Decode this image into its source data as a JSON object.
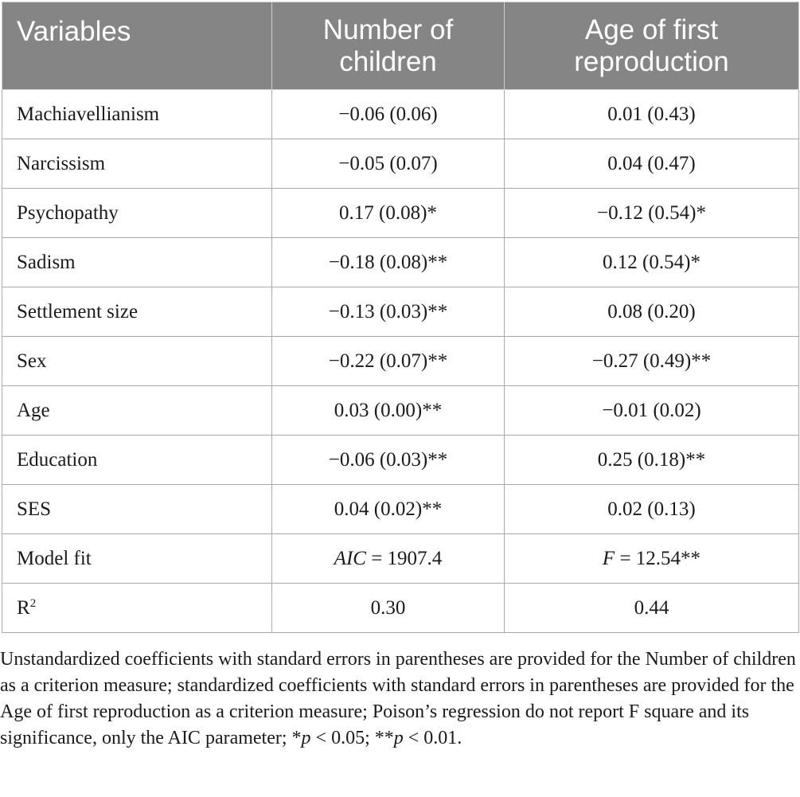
{
  "table": {
    "headers": [
      "Variables",
      "Number of children",
      "Age of first reproduction"
    ],
    "rows": [
      {
        "variable": "Machiavellianism",
        "children": "−0.06 (0.06)",
        "age_first": "0.01 (0.43)"
      },
      {
        "variable": "Narcissism",
        "children": "−0.05 (0.07)",
        "age_first": "0.04 (0.47)"
      },
      {
        "variable": "Psychopathy",
        "children": "0.17 (0.08)*",
        "age_first": "−0.12 (0.54)*"
      },
      {
        "variable": "Sadism",
        "children": "−0.18 (0.08)**",
        "age_first": "0.12 (0.54)*"
      },
      {
        "variable": "Settlement size",
        "children": "−0.13 (0.03)**",
        "age_first": "0.08 (0.20)"
      },
      {
        "variable": "Sex",
        "children": "−0.22 (0.07)**",
        "age_first": "−0.27 (0.49)**"
      },
      {
        "variable": "Age",
        "children": "0.03 (0.00)**",
        "age_first": "−0.01 (0.02)"
      },
      {
        "variable": "Education",
        "children": "−0.06 (0.03)**",
        "age_first": "0.25 (0.18)**"
      },
      {
        "variable": "SES",
        "children": "0.04 (0.02)**",
        "age_first": "0.02 (0.13)"
      }
    ],
    "model_fit": {
      "label": "Model fit",
      "children_stat": "AIC",
      "children_value": " = 1907.4",
      "age_stat": "F",
      "age_value": " = 12.54**"
    },
    "r2": {
      "label_base": "R",
      "label_sup": "2",
      "children": "0.30",
      "age_first": "0.44"
    }
  },
  "footnote": {
    "main": "Unstandardized coefficients with standard errors in parentheses are provided for the Number of children as a criterion measure; standardized coefficients with standard errors in parentheses are provided for the Age of first reproduction as a criterion measure; Poison’s regression do not report F square and its significance, only the AIC parameter; *",
    "p1": "p",
    "p1_rest": " < 0.05; **",
    "p2": "p",
    "p2_rest": " < 0.01."
  }
}
